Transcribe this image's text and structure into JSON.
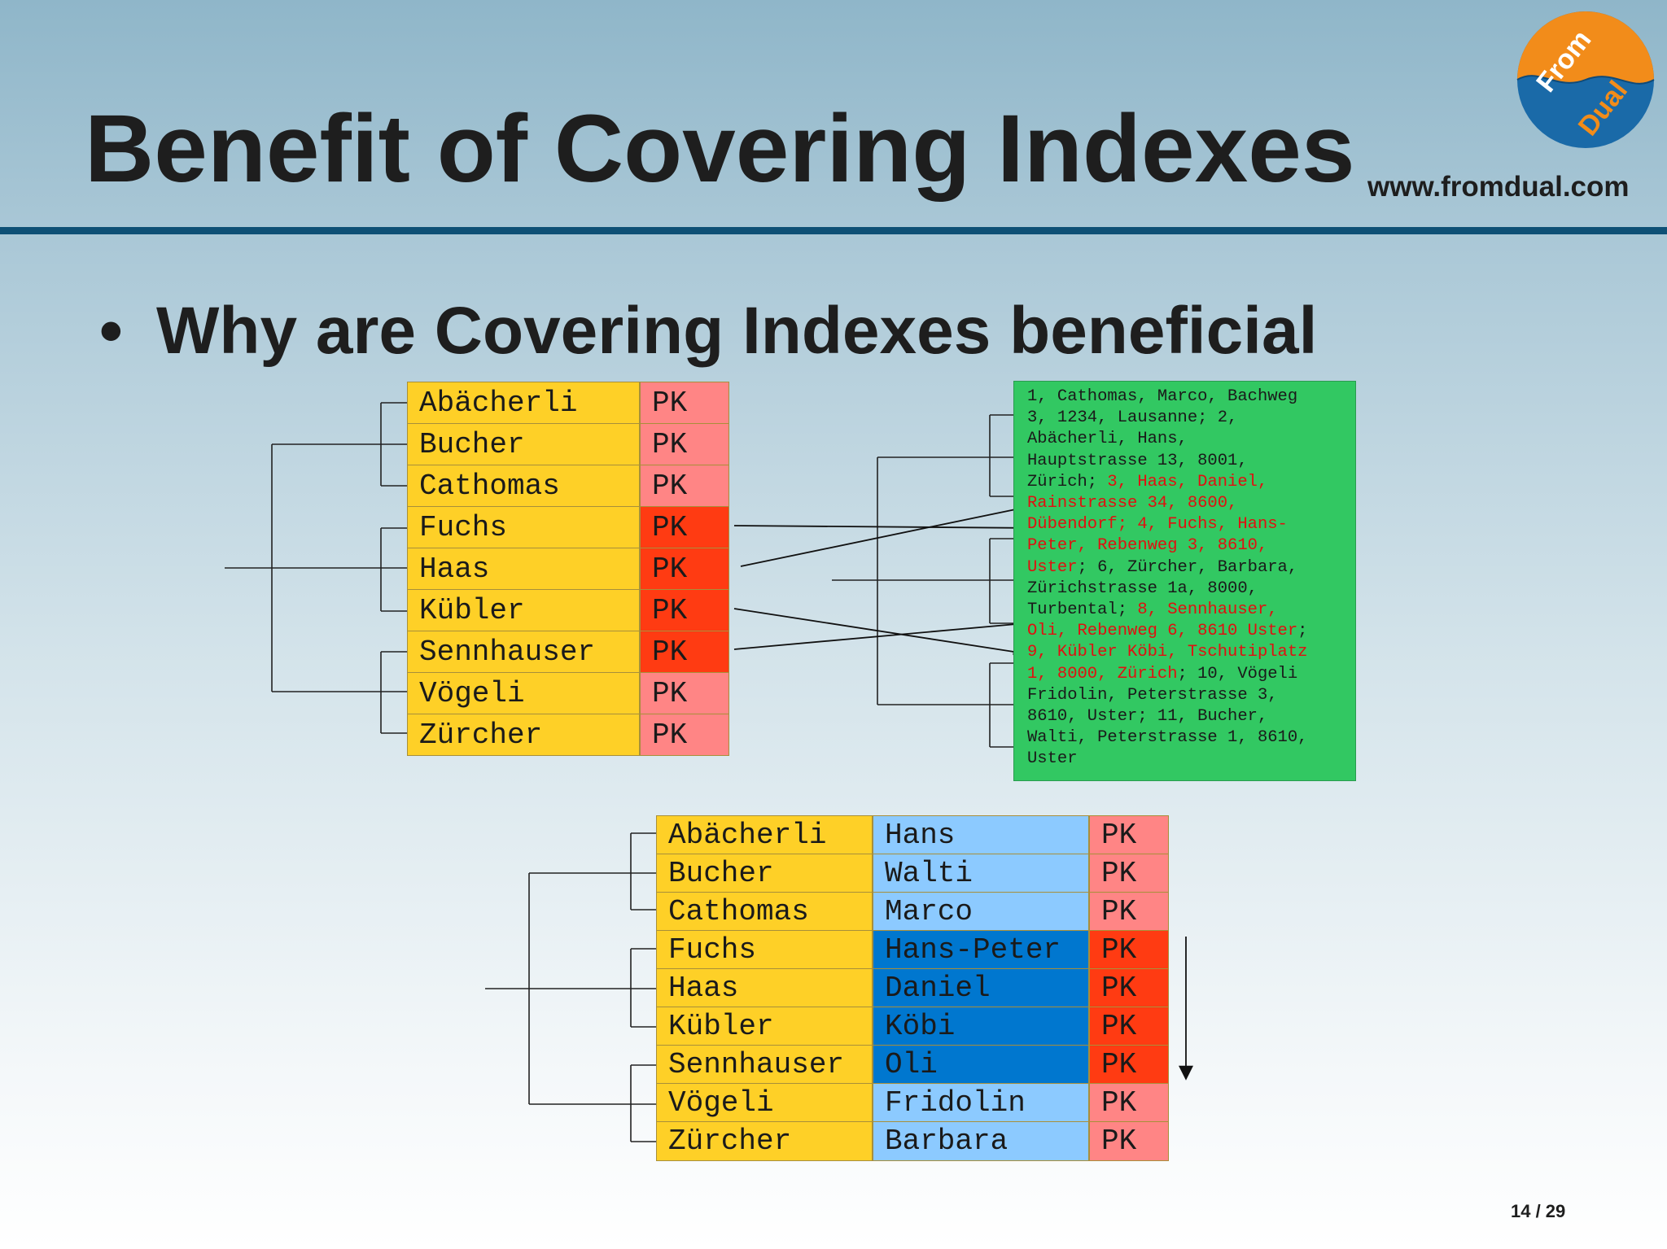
{
  "slide": {
    "title": "Benefit of Covering Indexes",
    "website": "www.fromdual.com",
    "logo": {
      "word1": "From",
      "word2": "Dual",
      "colors": {
        "orange": "#f28c1a",
        "blue": "#1a6aa8"
      }
    },
    "bullet": "Why are Covering Indexes beneficial",
    "page_number": "14 / 29"
  },
  "index_single": {
    "rows": [
      {
        "name": "Abächerli",
        "pk": "PK",
        "highlight": false
      },
      {
        "name": "Bucher",
        "pk": "PK",
        "highlight": false
      },
      {
        "name": "Cathomas",
        "pk": "PK",
        "highlight": false
      },
      {
        "name": "Fuchs",
        "pk": "PK",
        "highlight": true
      },
      {
        "name": "Haas",
        "pk": "PK",
        "highlight": true
      },
      {
        "name": "Kübler",
        "pk": "PK",
        "highlight": true
      },
      {
        "name": "Sennhauser",
        "pk": "PK",
        "highlight": true
      },
      {
        "name": "Vögeli",
        "pk": "PK",
        "highlight": false
      },
      {
        "name": "Zürcher",
        "pk": "PK",
        "highlight": false
      }
    ]
  },
  "table_rows": {
    "lines": [
      [
        {
          "t": "1, Cathomas, Marco, Bachweg",
          "r": false
        }
      ],
      [
        {
          "t": "3, 1234, Lausanne; 2,",
          "r": false
        }
      ],
      [
        {
          "t": "Abächerli, Hans,",
          "r": false
        }
      ],
      [
        {
          "t": "Hauptstrasse 13, 8001,",
          "r": false
        }
      ],
      [
        {
          "t": "Zürich; ",
          "r": false
        },
        {
          "t": "3, Haas, Daniel,",
          "r": true
        }
      ],
      [
        {
          "t": "Rainstrasse 34, 8600,",
          "r": true
        }
      ],
      [
        {
          "t": "Dübendorf; 4, Fuchs, Hans-",
          "r": true
        }
      ],
      [
        {
          "t": "Peter, Rebenweg 3, 8610,",
          "r": true
        }
      ],
      [
        {
          "t": "Uster",
          "r": true
        },
        {
          "t": "; 6, Zürcher, Barbara,",
          "r": false
        }
      ],
      [
        {
          "t": "Zürichstrasse 1a, 8000,",
          "r": false
        }
      ],
      [
        {
          "t": "Turbental; ",
          "r": false
        },
        {
          "t": "8, Sennhauser,",
          "r": true
        }
      ],
      [
        {
          "t": "Oli, Rebenweg 6, 8610 Uster",
          "r": true
        },
        {
          "t": ";",
          "r": false
        }
      ],
      [
        {
          "t": "9, Kübler Köbi, Tschutiplatz",
          "r": true
        }
      ],
      [
        {
          "t": "1, 8000, Zürich",
          "r": true
        },
        {
          "t": "; 10, Vögeli",
          "r": false
        }
      ],
      [
        {
          "t": "Fridolin, Peterstrasse 3,",
          "r": false
        }
      ],
      [
        {
          "t": "8610, Uster; 11, Bucher,",
          "r": false
        }
      ],
      [
        {
          "t": "Walti, Peterstrasse 1, 8610,",
          "r": false
        }
      ],
      [
        {
          "t": "Uster",
          "r": false
        }
      ]
    ]
  },
  "index_covering": {
    "rows": [
      {
        "name": "Abächerli",
        "first_name": "Hans",
        "pk": "PK",
        "highlight": false
      },
      {
        "name": "Bucher",
        "first_name": "Walti",
        "pk": "PK",
        "highlight": false
      },
      {
        "name": "Cathomas",
        "first_name": "Marco",
        "pk": "PK",
        "highlight": false
      },
      {
        "name": "Fuchs",
        "first_name": "Hans-Peter",
        "pk": "PK",
        "highlight": true
      },
      {
        "name": "Haas",
        "first_name": "Daniel",
        "pk": "PK",
        "highlight": true
      },
      {
        "name": "Kübler",
        "first_name": "Köbi",
        "pk": "PK",
        "highlight": true
      },
      {
        "name": "Sennhauser",
        "first_name": "Oli",
        "pk": "PK",
        "highlight": true
      },
      {
        "name": "Vögeli",
        "first_name": "Fridolin",
        "pk": "PK",
        "highlight": false
      },
      {
        "name": "Zürcher",
        "first_name": "Barbara",
        "pk": "PK",
        "highlight": false
      }
    ]
  }
}
